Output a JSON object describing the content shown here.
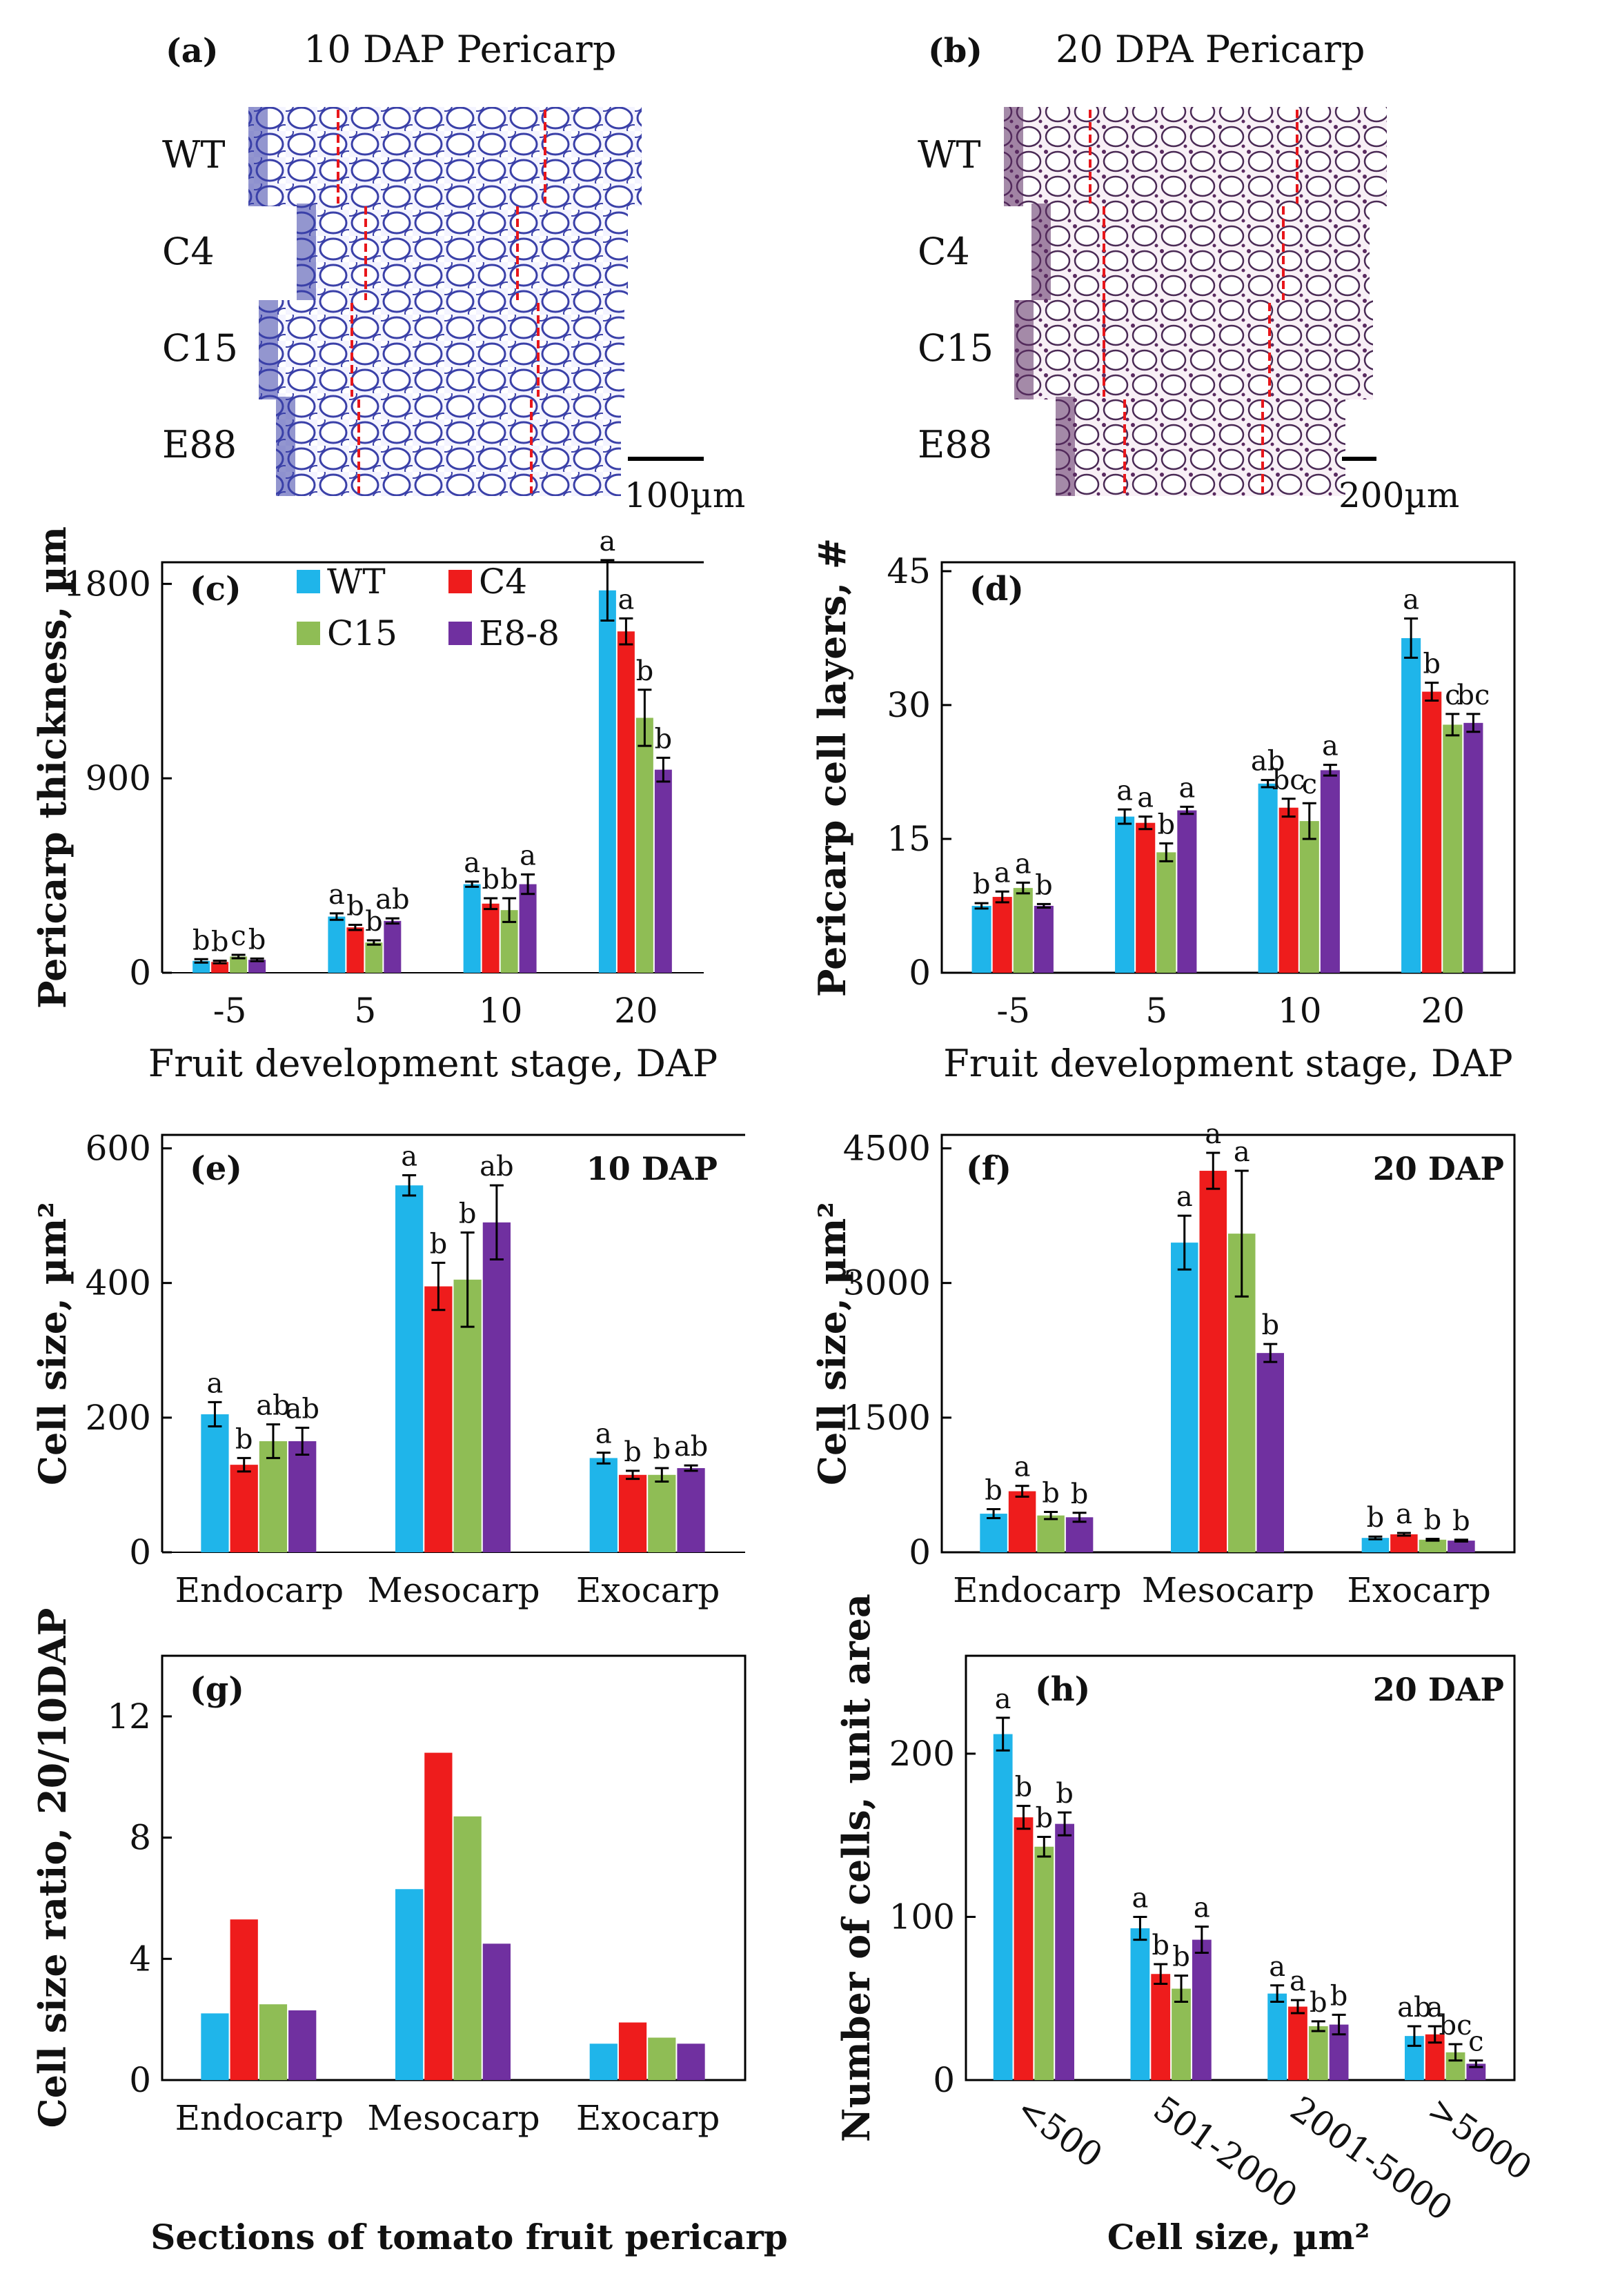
{
  "colors": {
    "WT": "#1fb5ea",
    "C4": "#ee1c1c",
    "C15": "#8fbd55",
    "E8-8": "#7030a0",
    "micro_a": "#3a40a8",
    "micro_b": "#4a2a55"
  },
  "micrographs": [
    {
      "panel": "(a)",
      "title": "10 DAP Pericarp",
      "rows": [
        "WT",
        "C4",
        "C15",
        "E88"
      ],
      "scale_label": "100µm",
      "stain": "blue"
    },
    {
      "panel": "(b)",
      "title": "20 DPA Pericarp",
      "rows": [
        "WT",
        "C4",
        "C15",
        "E88"
      ],
      "scale_label": "200µm",
      "stain": "purple"
    }
  ],
  "chart_data": [
    {
      "id": "c",
      "panel": "(c)",
      "type": "bar",
      "ylabel": "Pericarp thickness, µm",
      "xlabel": "Fruit development stage, DAP",
      "categories": [
        "-5",
        "5",
        "10",
        "20"
      ],
      "ylim": [
        0,
        1900
      ],
      "yticks": [
        0,
        900,
        1800
      ],
      "legend": [
        "WT",
        "C4",
        "C15",
        "E8-8"
      ],
      "series": [
        {
          "name": "WT",
          "values": [
            55,
            260,
            410,
            1770
          ],
          "errors": [
            8,
            15,
            12,
            140
          ]
        },
        {
          "name": "C4",
          "values": [
            50,
            210,
            320,
            1580
          ],
          "errors": [
            6,
            12,
            25,
            60
          ]
        },
        {
          "name": "C15",
          "values": [
            75,
            140,
            290,
            1180
          ],
          "errors": [
            8,
            10,
            55,
            130
          ]
        },
        {
          "name": "E8-8",
          "values": [
            60,
            240,
            410,
            940
          ],
          "errors": [
            6,
            12,
            45,
            55
          ]
        }
      ],
      "letters": [
        [
          "b",
          "b",
          "c",
          "b"
        ],
        [
          "a",
          "b",
          "b",
          "ab"
        ],
        [
          "a",
          "b",
          "b",
          "a"
        ],
        [
          "a",
          "a",
          "b",
          "b"
        ]
      ]
    },
    {
      "id": "d",
      "panel": "(d)",
      "type": "bar",
      "ylabel": "Pericarp cell layers, #",
      "xlabel": "Fruit development stage, DAP",
      "categories": [
        "-5",
        "5",
        "10",
        "20"
      ],
      "ylim": [
        0,
        46
      ],
      "yticks": [
        0,
        15,
        30,
        45
      ],
      "series": [
        {
          "name": "WT",
          "values": [
            7.5,
            17.5,
            21.2,
            37.5
          ],
          "errors": [
            0.3,
            0.8,
            0.4,
            2.2
          ]
        },
        {
          "name": "C4",
          "values": [
            8.5,
            16.8,
            18.5,
            31.5
          ],
          "errors": [
            0.6,
            0.7,
            1.0,
            1.0
          ]
        },
        {
          "name": "C15",
          "values": [
            9.5,
            13.5,
            17.0,
            27.8
          ],
          "errors": [
            0.6,
            1.0,
            2.0,
            1.2
          ]
        },
        {
          "name": "E8-8",
          "values": [
            7.5,
            18.2,
            22.7,
            28.0
          ],
          "errors": [
            0.2,
            0.4,
            0.6,
            1.0
          ]
        }
      ],
      "letters": [
        [
          "b",
          "a",
          "a",
          "b"
        ],
        [
          "a",
          "a",
          "b",
          "a"
        ],
        [
          "ab",
          "bc",
          "c",
          "a"
        ],
        [
          "a",
          "b",
          "c",
          "bc"
        ]
      ]
    },
    {
      "id": "e",
      "panel": "(e)",
      "type": "bar",
      "ylabel": "Cell size, µm²",
      "xlabel": "",
      "stage_label": "10 DAP",
      "categories": [
        "Endocarp",
        "Mesocarp",
        "Exocarp"
      ],
      "ylim": [
        0,
        620
      ],
      "yticks": [
        0,
        200,
        400,
        600
      ],
      "series": [
        {
          "name": "WT",
          "values": [
            205,
            545,
            140
          ],
          "errors": [
            18,
            15,
            8
          ]
        },
        {
          "name": "C4",
          "values": [
            130,
            395,
            115
          ],
          "errors": [
            10,
            35,
            6
          ]
        },
        {
          "name": "C15",
          "values": [
            165,
            405,
            115
          ],
          "errors": [
            25,
            70,
            10
          ]
        },
        {
          "name": "E8-8",
          "values": [
            165,
            490,
            125
          ],
          "errors": [
            20,
            55,
            4
          ]
        }
      ],
      "letters": [
        [
          "a",
          "b",
          "ab",
          "ab"
        ],
        [
          "a",
          "b",
          "b",
          "ab"
        ],
        [
          "a",
          "b",
          "b",
          "ab"
        ]
      ]
    },
    {
      "id": "f",
      "panel": "(f)",
      "type": "bar",
      "ylabel": "Cell size, µm²",
      "xlabel": "",
      "stage_label": "20 DAP",
      "categories": [
        "Endocarp",
        "Mesocarp",
        "Exocarp"
      ],
      "ylim": [
        0,
        4650
      ],
      "yticks": [
        0,
        1500,
        3000,
        4500
      ],
      "series": [
        {
          "name": "WT",
          "values": [
            430,
            3450,
            160
          ],
          "errors": [
            50,
            300,
            15
          ]
        },
        {
          "name": "C4",
          "values": [
            680,
            4250,
            200
          ],
          "errors": [
            60,
            200,
            15
          ]
        },
        {
          "name": "C15",
          "values": [
            410,
            3550,
            140
          ],
          "errors": [
            40,
            700,
            10
          ]
        },
        {
          "name": "E8-8",
          "values": [
            390,
            2220,
            130
          ],
          "errors": [
            50,
            100,
            10
          ]
        }
      ],
      "letters": [
        [
          "b",
          "a",
          "b",
          "b"
        ],
        [
          "a",
          "a",
          "a",
          "b"
        ],
        [
          "b",
          "a",
          "b",
          "b"
        ]
      ]
    },
    {
      "id": "g",
      "panel": "(g)",
      "type": "bar",
      "ylabel": "Cell size ratio, 20/10DAP",
      "xlabel": "Sections of tomato fruit pericarp",
      "categories": [
        "Endocarp",
        "Mesocarp",
        "Exocarp"
      ],
      "ylim": [
        0,
        14
      ],
      "yticks": [
        0,
        4,
        8,
        12
      ],
      "series": [
        {
          "name": "WT",
          "values": [
            2.2,
            6.3,
            1.2
          ]
        },
        {
          "name": "C4",
          "values": [
            5.3,
            10.8,
            1.9
          ]
        },
        {
          "name": "C15",
          "values": [
            2.5,
            8.7,
            1.4
          ]
        },
        {
          "name": "E8-8",
          "values": [
            2.3,
            4.5,
            1.2
          ]
        }
      ]
    },
    {
      "id": "h",
      "panel": "(h)",
      "type": "bar",
      "ylabel": "Number of cells, unit area",
      "xlabel": "Cell size, µm²",
      "stage_label": "20 DAP",
      "categories": [
        "<500",
        "501-2000",
        "2001-5000",
        ">5000"
      ],
      "ylim": [
        0,
        260
      ],
      "yticks": [
        0,
        100,
        200
      ],
      "series": [
        {
          "name": "WT",
          "values": [
            212,
            93,
            53,
            27
          ],
          "errors": [
            10,
            7,
            5,
            6
          ]
        },
        {
          "name": "C4",
          "values": [
            161,
            65,
            45,
            28
          ],
          "errors": [
            7,
            6,
            4,
            5
          ]
        },
        {
          "name": "C15",
          "values": [
            143,
            56,
            33,
            17
          ],
          "errors": [
            6,
            8,
            3,
            5
          ]
        },
        {
          "name": "E8-8",
          "values": [
            157,
            86,
            34,
            10
          ],
          "errors": [
            7,
            8,
            6,
            2
          ]
        }
      ],
      "letters": [
        [
          "a",
          "b",
          "b",
          "b"
        ],
        [
          "a",
          "b",
          "b",
          "a"
        ],
        [
          "a",
          "a",
          "b",
          "b"
        ],
        [
          "ab",
          "a",
          "bc",
          "c"
        ]
      ]
    }
  ]
}
